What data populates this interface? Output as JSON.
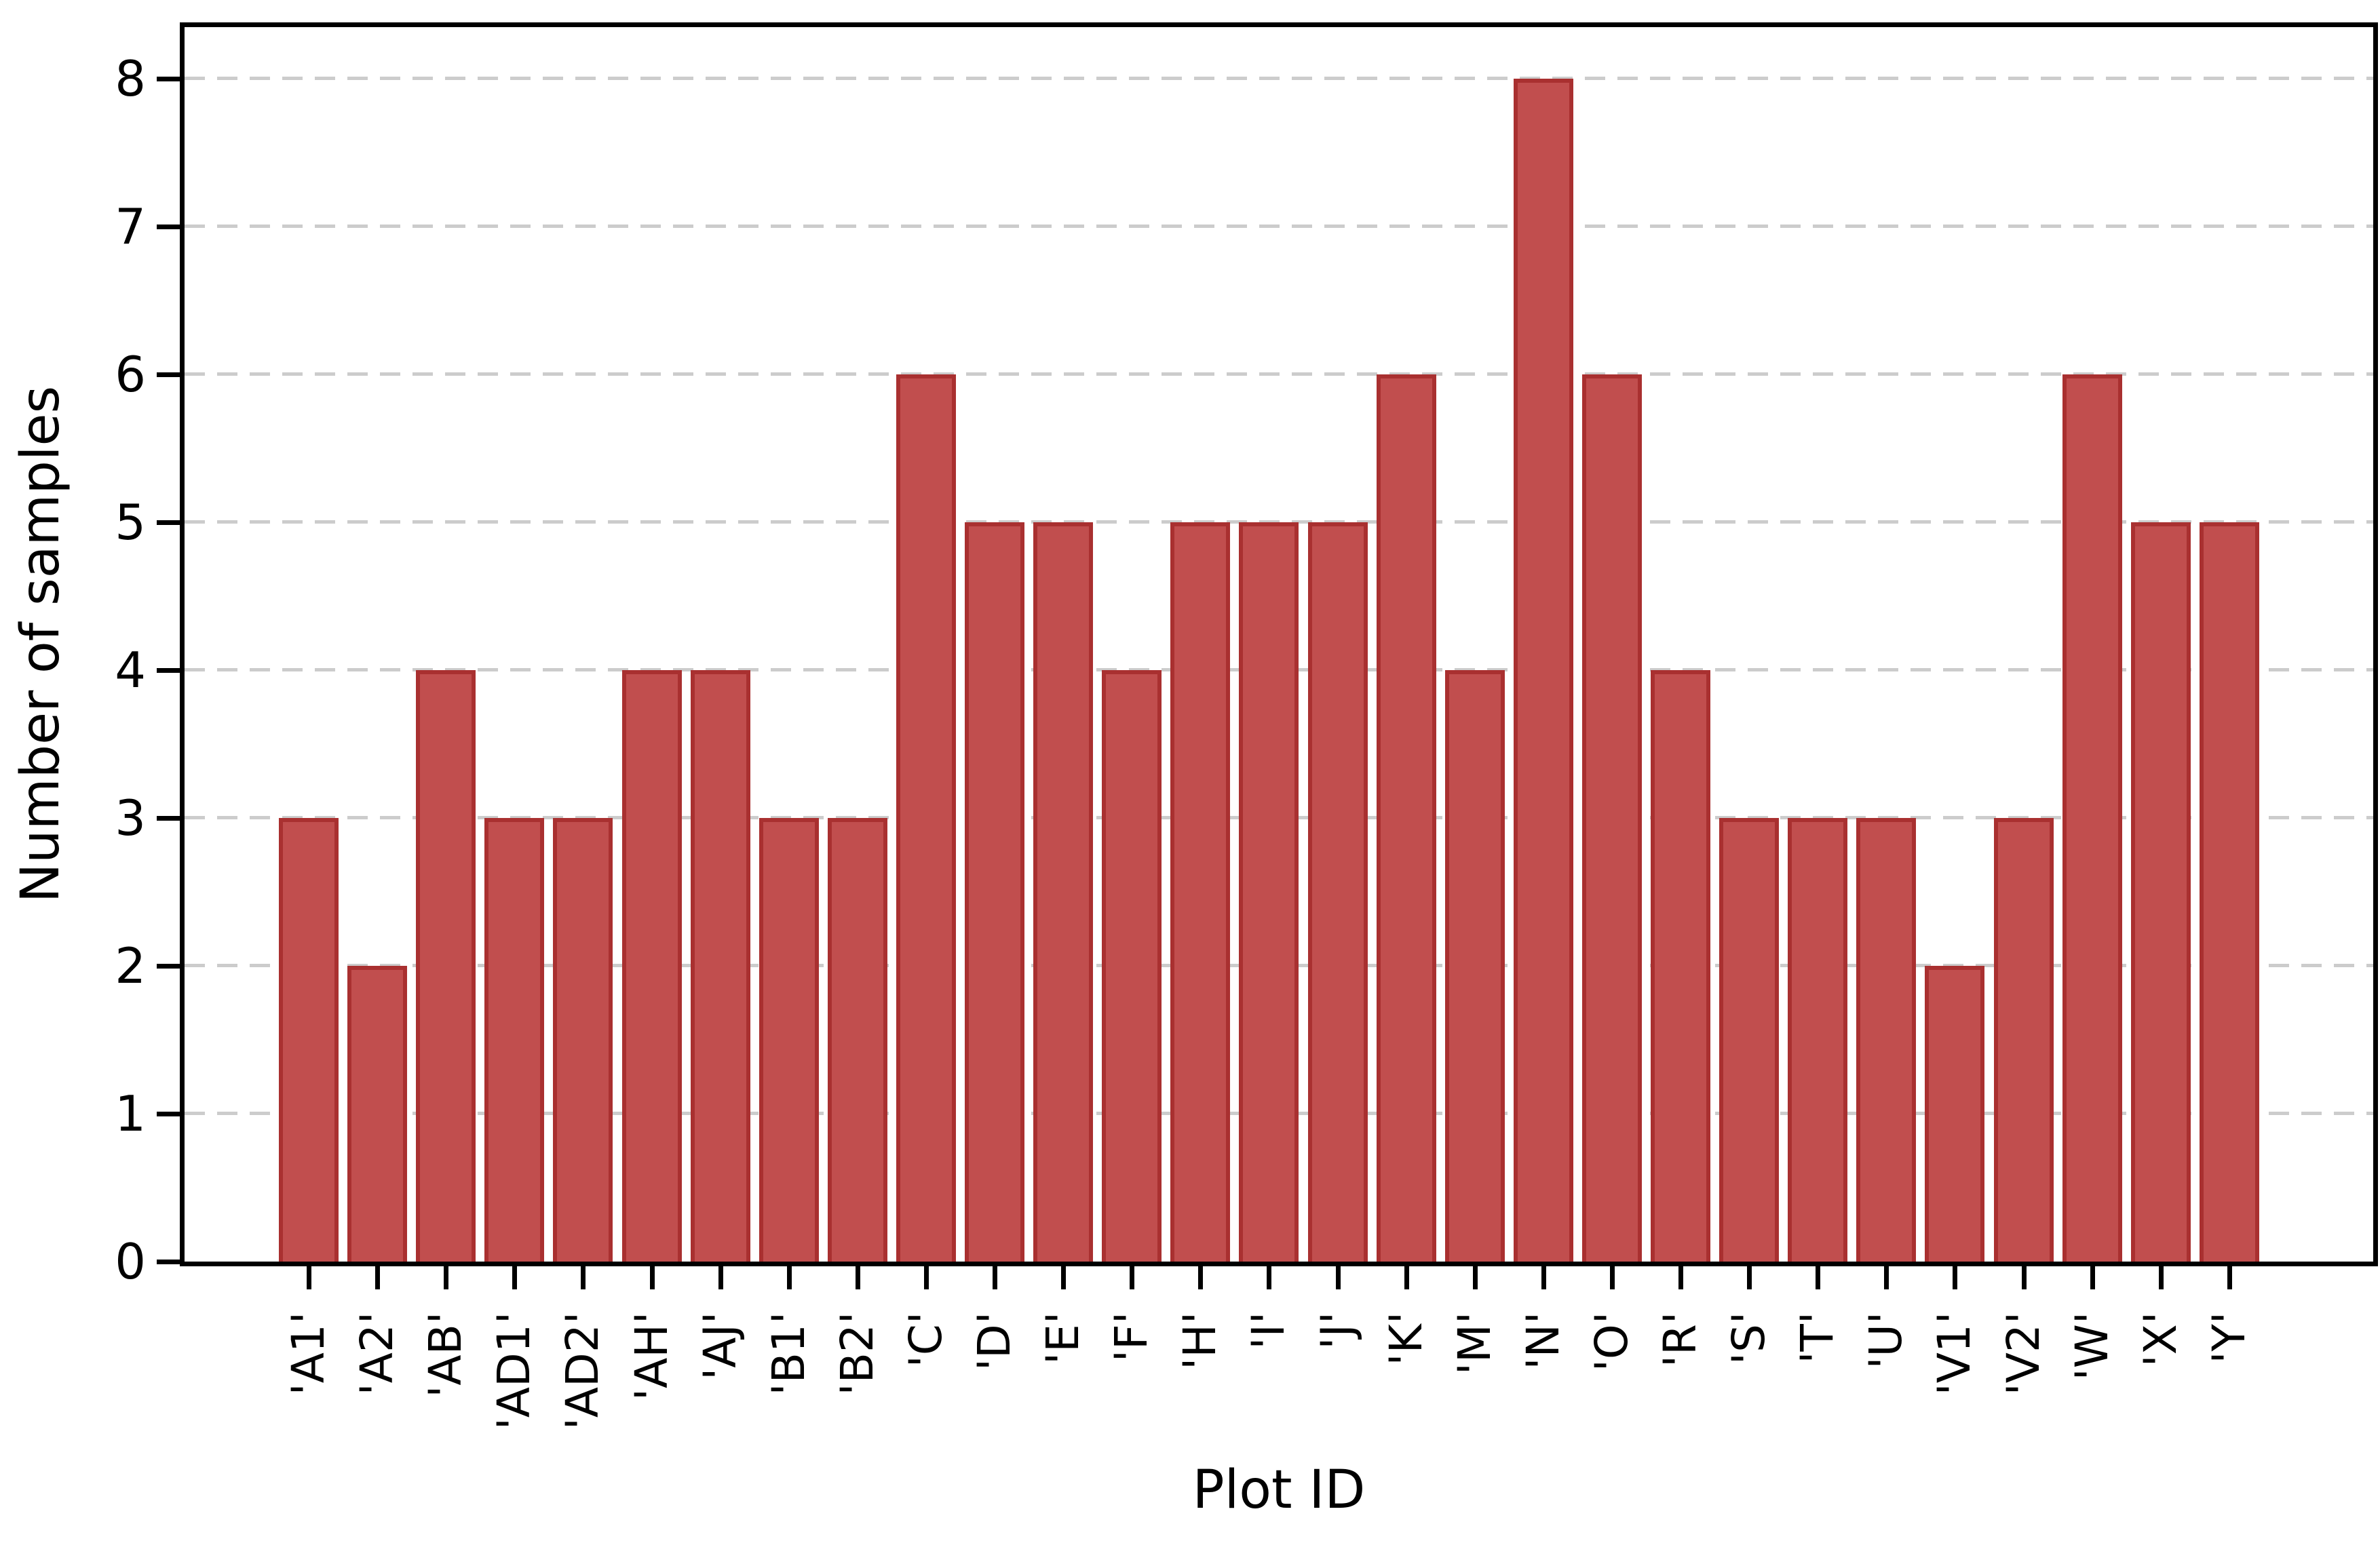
{
  "chart_data": {
    "type": "bar",
    "title": "",
    "xlabel": "Plot ID",
    "ylabel": "Number of samples",
    "categories": [
      "'A1'",
      "'A2'",
      "'AB'",
      "'AD1'",
      "'AD2'",
      "'AH'",
      "'AJ'",
      "'B1'",
      "'B2'",
      "'C'",
      "'D'",
      "'E'",
      "'F'",
      "'H'",
      "'I'",
      "'J'",
      "'K'",
      "'M'",
      "'N'",
      "'O'",
      "'R'",
      "'S'",
      "'T'",
      "'U'",
      "'V1'",
      "'V2'",
      "'W'",
      "'X'",
      "'Y'"
    ],
    "values": [
      3,
      2,
      4,
      3,
      3,
      4,
      4,
      3,
      3,
      6,
      5,
      5,
      4,
      5,
      5,
      5,
      6,
      4,
      8,
      6,
      4,
      3,
      3,
      3,
      2,
      3,
      6,
      5,
      5
    ],
    "yticks": [
      0,
      1,
      2,
      3,
      4,
      5,
      6,
      7,
      8
    ],
    "ylim": [
      0,
      8.35
    ],
    "grid": "horizontal-dashed",
    "legend": "none",
    "colors": {
      "bar_fill": "#C14E4E",
      "bar_edge": "#A93030",
      "gridline": "#CCCCCC",
      "axis": "#000000",
      "text": "#000000",
      "background": "#FFFFFF"
    }
  }
}
